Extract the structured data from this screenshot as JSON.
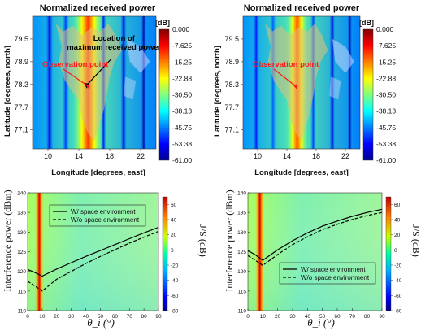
{
  "colors": {
    "text": "#111111",
    "annotation_black": "#000000",
    "annotation_red": "#ff1a1a",
    "line": "#000000",
    "sand": "#d8b46a",
    "blue_band": "#3a7fd0"
  },
  "chart_data": [
    {
      "type": "heatmap",
      "title": "Normalized received power",
      "xlabel": "Longitude [degrees, east]",
      "ylabel": "Latitude [degrees, north]",
      "x_ticks": [
        10,
        14,
        18,
        22
      ],
      "y_ticks": [
        79.5,
        78.9,
        78.3,
        77.7,
        77.1
      ],
      "xlim": [
        8,
        24
      ],
      "ylim": [
        76.6,
        80.1
      ],
      "colorbar_unit": "[dB]",
      "colorbar_ticks": [
        "0.000",
        "-7.625",
        "-15.25",
        "-22.88",
        "-30.50",
        "-38.13",
        "-45.75",
        "-53.38",
        "-61.00"
      ],
      "clim": [
        -61,
        0
      ],
      "annotations": [
        {
          "text": "Location of maximum received power",
          "lines": [
            "Location of",
            "maximum received power"
          ],
          "color": "black",
          "target": [
            14.8,
            78.15
          ]
        },
        {
          "text": "Observation point",
          "color": "red",
          "target": [
            15.4,
            78.2
          ]
        }
      ],
      "bands": [
        {
          "x": 10.2,
          "width": 1.1,
          "level": -55
        },
        {
          "x": 12.3,
          "width": 1.0,
          "level": -50
        },
        {
          "x": 17.2,
          "width": 0.8,
          "level": -52
        },
        {
          "x": 19.8,
          "width": 0.9,
          "level": -55
        },
        {
          "x": 22.4,
          "width": 0.9,
          "level": -58
        }
      ],
      "peak_band": {
        "x": 15.2,
        "width": 4.0,
        "level": 0
      }
    },
    {
      "type": "heatmap",
      "title": "Normalized received power",
      "xlabel": "Longitude [degrees, east]",
      "ylabel": "Latitude [degrees, north]",
      "x_ticks": [
        10,
        14,
        18,
        22
      ],
      "y_ticks": [
        79.5,
        78.9,
        78.3,
        77.7,
        77.1
      ],
      "xlim": [
        8,
        24
      ],
      "ylim": [
        76.6,
        80.1
      ],
      "colorbar_unit": "[dB]",
      "colorbar_ticks": [
        "0.000",
        "-7.625",
        "-15.25",
        "-22.88",
        "-30.50",
        "-38.13",
        "-45.75",
        "-53.38",
        "-61.00"
      ],
      "clim": [
        -61,
        0
      ],
      "annotations": [
        {
          "text": "Observation point",
          "color": "red",
          "target": [
            15.4,
            78.2
          ]
        }
      ],
      "bands": [
        {
          "x": 9.8,
          "width": 1.0,
          "level": -52
        },
        {
          "x": 12.1,
          "width": 0.9,
          "level": -48
        },
        {
          "x": 17.6,
          "width": 0.8,
          "level": -50
        },
        {
          "x": 20.2,
          "width": 0.9,
          "level": -56
        },
        {
          "x": 22.6,
          "width": 0.8,
          "level": -58
        }
      ],
      "peak_band": {
        "x": 15.4,
        "width": 3.0,
        "level": -2
      }
    },
    {
      "type": "line",
      "xlabel": "θ_i (°)",
      "ylabel": "Interference power (dBm)",
      "xlim": [
        0,
        90
      ],
      "ylim": [
        110,
        140
      ],
      "x_ticks": [
        0,
        10,
        20,
        30,
        40,
        50,
        60,
        70,
        80,
        90
      ],
      "y_ticks": [
        110,
        115,
        120,
        125,
        130,
        135,
        140
      ],
      "colorbar_label": "J/S (dB)",
      "colorbar_ticks": [
        60,
        40,
        20,
        0,
        -20,
        -40,
        -60,
        -80
      ],
      "clim": [
        -80,
        70
      ],
      "legend_position": "top-left",
      "hot_band_x": 8,
      "series": [
        {
          "name": "W/ space environment",
          "style": "solid",
          "x": [
            0,
            5,
            10,
            20,
            30,
            40,
            50,
            60,
            70,
            80,
            90
          ],
          "y": [
            120.5,
            119.7,
            118.8,
            120.6,
            122.2,
            123.8,
            125.3,
            126.8,
            128.3,
            129.8,
            131.2
          ]
        },
        {
          "name": "W/o space environment",
          "style": "dashed",
          "x": [
            0,
            5,
            10,
            20,
            30,
            40,
            50,
            60,
            70,
            80,
            90
          ],
          "y": [
            117.5,
            116.3,
            115.0,
            118.0,
            120.0,
            122.0,
            123.8,
            125.5,
            127.2,
            128.7,
            130.2
          ]
        }
      ]
    },
    {
      "type": "line",
      "xlabel": "θ_i (°)",
      "ylabel": "Interference power (dBm)",
      "xlim": [
        0,
        90
      ],
      "ylim": [
        110,
        140
      ],
      "x_ticks": [
        0,
        10,
        20,
        30,
        40,
        50,
        60,
        70,
        80,
        90
      ],
      "y_ticks": [
        110,
        115,
        120,
        125,
        130,
        135,
        140
      ],
      "colorbar_label": "J/S (dB)",
      "colorbar_ticks": [
        60,
        40,
        20,
        0,
        -20,
        -40,
        -60,
        -80
      ],
      "clim": [
        -80,
        70
      ],
      "legend_position": "bottom-right",
      "hot_band_x": 8,
      "series": [
        {
          "name": "W/ space environment",
          "style": "solid",
          "x": [
            0,
            5,
            10,
            20,
            30,
            40,
            50,
            60,
            70,
            80,
            90
          ],
          "y": [
            125.3,
            124.2,
            122.8,
            125.5,
            127.8,
            129.8,
            131.5,
            132.8,
            134.0,
            135.0,
            135.8
          ]
        },
        {
          "name": "W/o space environment",
          "style": "dashed",
          "x": [
            0,
            5,
            10,
            20,
            30,
            40,
            50,
            60,
            70,
            80,
            90
          ],
          "y": [
            124.0,
            122.8,
            121.5,
            124.3,
            126.8,
            128.8,
            130.6,
            132.0,
            133.2,
            134.2,
            135.0
          ]
        }
      ]
    }
  ]
}
